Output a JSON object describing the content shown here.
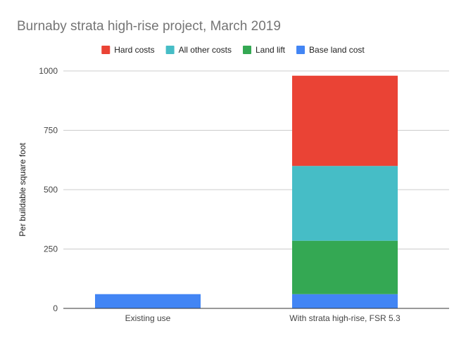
{
  "chart_data": {
    "type": "bar",
    "stacked": true,
    "title": "Burnaby strata high-rise project, March 2019",
    "xlabel": "",
    "ylabel": "Per buildable square foot",
    "ylim": [
      0,
      1000
    ],
    "yticks": [
      0,
      250,
      500,
      750,
      1000
    ],
    "grid": true,
    "legend_position": "top",
    "categories": [
      "Existing use",
      "With strata high-rise, FSR 5.3"
    ],
    "series": [
      {
        "name": "Base land cost",
        "color": "#4285f4",
        "values": [
          60,
          60
        ]
      },
      {
        "name": "Land lift",
        "color": "#34a853",
        "values": [
          0,
          225
        ]
      },
      {
        "name": "All other costs",
        "color": "#46bdc6",
        "values": [
          0,
          315
        ]
      },
      {
        "name": "Hard costs",
        "color": "#ea4335",
        "values": [
          0,
          380
        ]
      }
    ],
    "legend_order": [
      "Hard costs",
      "All other costs",
      "Land lift",
      "Base land cost"
    ]
  }
}
